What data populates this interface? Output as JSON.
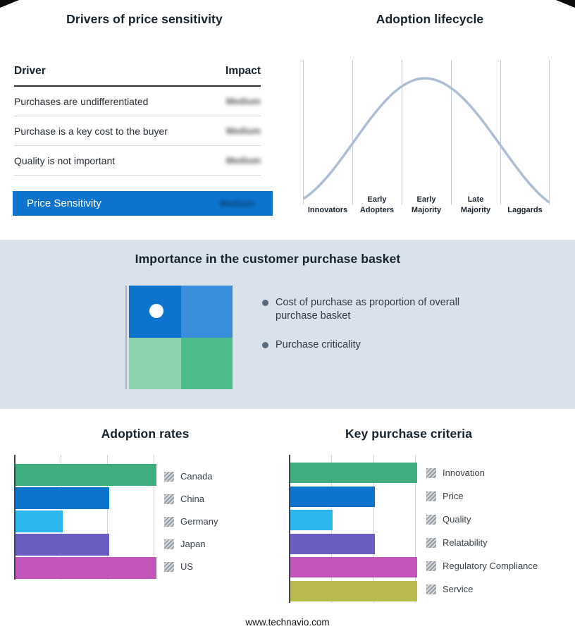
{
  "drivers_table": {
    "title": "Drivers of price sensitivity",
    "header": {
      "driver": "Driver",
      "impact": "Impact"
    },
    "rows": [
      {
        "driver": "Purchases are undifferentiated",
        "impact": "Medium"
      },
      {
        "driver": "Purchase is a key cost to the buyer",
        "impact": "Medium"
      },
      {
        "driver": "Quality is not important",
        "impact": "Medium"
      }
    ],
    "highlight": {
      "label": "Price Sensitivity",
      "impact": "Medium"
    },
    "highlight_color": "#0d74ce"
  },
  "basket": {
    "title": "Importance in the customer purchase basket",
    "bullets": [
      "Cost of purchase as proportion of overall purchase basket",
      "Purchase criticality"
    ],
    "quadrant_colors": [
      "#0d74ce",
      "#3a8edb",
      "#8ed2ad",
      "#4cbd88"
    ]
  },
  "chart_data": [
    {
      "id": "adoption_lifecycle",
      "type": "line",
      "title": "Adoption lifecycle",
      "x_categories": [
        "Innovators",
        "Early Adopters",
        "Early Majority",
        "Late Majority",
        "Laggards"
      ],
      "shape": "bell curve peaking at Early Majority",
      "curve_color": "#aebfd3",
      "grid": "vertical dividers between stages"
    },
    {
      "id": "adoption_rates",
      "type": "bar",
      "orientation": "horizontal",
      "title": "Adoption rates",
      "categories": [
        "Canada",
        "China",
        "Germany",
        "Japan",
        "US"
      ],
      "values": [
        3,
        2,
        1,
        2,
        3
      ],
      "xlim": [
        0,
        3
      ],
      "units": "relative (gridline steps)",
      "colors": [
        "#3fae7e",
        "#0d74ce",
        "#2bb7ed",
        "#6a5ec1",
        "#c155b9"
      ],
      "gridlines": 3,
      "legend_position": "right"
    },
    {
      "id": "key_purchase_criteria",
      "type": "bar",
      "orientation": "horizontal",
      "title": "Key purchase criteria",
      "categories": [
        "Innovation",
        "Price",
        "Quality",
        "Relatability",
        "Regulatory Compliance",
        "Service"
      ],
      "values": [
        3,
        2,
        1,
        2,
        3,
        3
      ],
      "xlim": [
        0,
        3
      ],
      "units": "relative (gridline steps)",
      "colors": [
        "#3fae7e",
        "#0d74ce",
        "#2bb7ed",
        "#6a5ec1",
        "#c155b9",
        "#b9ba4d"
      ],
      "gridlines": 3,
      "legend_position": "right"
    }
  ],
  "footer": {
    "url": "www.technavio.com"
  }
}
